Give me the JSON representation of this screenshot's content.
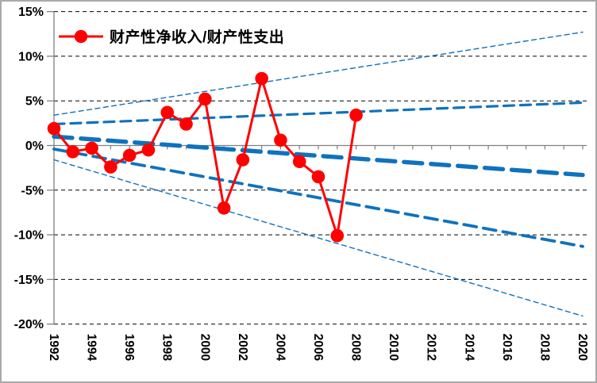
{
  "chart_data": {
    "type": "line",
    "title": "",
    "xlabel": "",
    "ylabel": "",
    "legend_position": "top-left",
    "xlim": [
      1992,
      2020
    ],
    "ylim": [
      -20,
      15
    ],
    "grid": "horizontal-dashed",
    "x": [
      1992,
      1993,
      1994,
      1995,
      1996,
      1997,
      1998,
      1999,
      2000,
      2001,
      2002,
      2003,
      2004,
      2005,
      2006,
      2007,
      2008
    ],
    "series": [
      {
        "name": "财产性净收入/财产性支出",
        "color": "#FF0000",
        "marker": "circle",
        "values": [
          1.9,
          -0.7,
          -0.3,
          -2.4,
          -1.1,
          -0.5,
          3.7,
          2.4,
          5.2,
          -7.0,
          -1.6,
          7.5,
          0.6,
          -1.8,
          -3.5,
          -10.1,
          3.4
        ]
      }
    ],
    "trend_lines": [
      {
        "name": "outer-upper-band",
        "style": "thin",
        "x": [
          1992,
          2020
        ],
        "values": [
          3.4,
          12.7
        ]
      },
      {
        "name": "inner-upper-band",
        "style": "medium",
        "x": [
          1992,
          2020
        ],
        "values": [
          2.4,
          4.8
        ]
      },
      {
        "name": "center-trend",
        "style": "thick",
        "x": [
          1992,
          2020
        ],
        "values": [
          1.0,
          -3.3
        ]
      },
      {
        "name": "inner-lower-band",
        "style": "medium2",
        "x": [
          1992,
          2020
        ],
        "values": [
          -0.4,
          -11.3
        ]
      },
      {
        "name": "outer-lower-band",
        "style": "thin",
        "x": [
          1992,
          2020
        ],
        "values": [
          -1.6,
          -19.1
        ]
      }
    ],
    "y_ticks": [
      {
        "label": "15%",
        "value": 15
      },
      {
        "label": "10%",
        "value": 10
      },
      {
        "label": "5%",
        "value": 5
      },
      {
        "label": "0%",
        "value": 0
      },
      {
        "label": "-5%",
        "value": -5
      },
      {
        "label": "-10%",
        "value": -10
      },
      {
        "label": "-15%",
        "value": -15
      },
      {
        "label": "-20%",
        "value": -20
      }
    ],
    "x_ticks": [
      {
        "label": "1992",
        "value": 1992
      },
      {
        "label": "1994",
        "value": 1994
      },
      {
        "label": "1996",
        "value": 1996
      },
      {
        "label": "1998",
        "value": 1998
      },
      {
        "label": "2000",
        "value": 2000
      },
      {
        "label": "2002",
        "value": 2002
      },
      {
        "label": "2004",
        "value": 2004
      },
      {
        "label": "2006",
        "value": 2006
      },
      {
        "label": "2008",
        "value": 2008
      },
      {
        "label": "2010",
        "value": 2010
      },
      {
        "label": "2012",
        "value": 2012
      },
      {
        "label": "2014",
        "value": 2014
      },
      {
        "label": "2016",
        "value": 2016
      },
      {
        "label": "2018",
        "value": 2018
      },
      {
        "label": "2020",
        "value": 2020
      }
    ],
    "colors": {
      "series": "#FF0000",
      "trend": "#0F72BE",
      "gridline": "#000000",
      "axis": "#808080",
      "frame_border": "#AAAAAA"
    }
  }
}
